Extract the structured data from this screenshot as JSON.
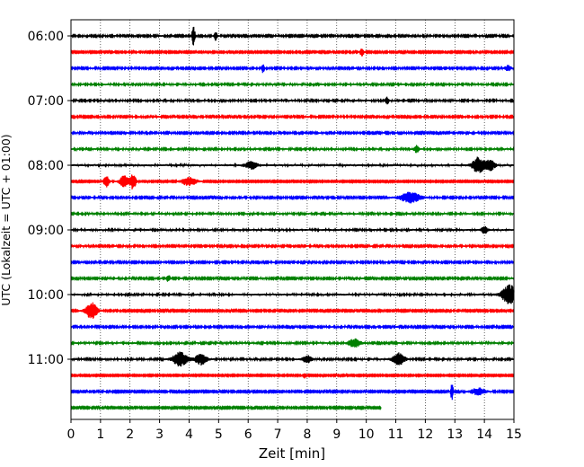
{
  "chart_data": {
    "type": "line",
    "title": "",
    "xlabel": "Zeit  [min]",
    "ylabel": "UTC (Lokalzeit = UTC + 01:00)",
    "xlim": [
      0,
      15
    ],
    "x_ticks": [
      0,
      1,
      2,
      3,
      4,
      5,
      6,
      7,
      8,
      9,
      10,
      11,
      12,
      13,
      14,
      15
    ],
    "x_tick_labels": [
      "0",
      "1",
      "2",
      "3",
      "4",
      "5",
      "6",
      "7",
      "8",
      "9",
      "10",
      "11",
      "12",
      "13",
      "14",
      "15"
    ],
    "y_tick_labels": [
      "06:00",
      "07:00",
      "08:00",
      "09:00",
      "10:00",
      "11:00"
    ],
    "grid": "vertical dotted",
    "legend": "none",
    "colors": [
      "#000000",
      "#ff0000",
      "#0000ff",
      "#008000"
    ],
    "traces": [
      {
        "start": "06:00",
        "color": "#000000",
        "end_min": 15,
        "amplitude": 1.0,
        "events": [
          {
            "t": 4.15,
            "a": 12,
            "w": 0.05
          },
          {
            "t": 4.9,
            "a": 5,
            "w": 0.05
          }
        ]
      },
      {
        "start": "06:15",
        "color": "#ff0000",
        "end_min": 15,
        "amplitude": 0.9,
        "events": [
          {
            "t": 9.85,
            "a": 5,
            "w": 0.06
          }
        ]
      },
      {
        "start": "06:30",
        "color": "#0000ff",
        "end_min": 15,
        "amplitude": 1.0,
        "events": [
          {
            "t": 6.5,
            "a": 5,
            "w": 0.05
          },
          {
            "t": 14.8,
            "a": 3,
            "w": 0.1
          }
        ]
      },
      {
        "start": "06:45",
        "color": "#008000",
        "end_min": 15,
        "amplitude": 1.1,
        "events": []
      },
      {
        "start": "07:00",
        "color": "#000000",
        "end_min": 15,
        "amplitude": 1.1,
        "events": [
          {
            "t": 10.7,
            "a": 4,
            "w": 0.06
          }
        ]
      },
      {
        "start": "07:15",
        "color": "#ff0000",
        "end_min": 15,
        "amplitude": 1.0,
        "events": []
      },
      {
        "start": "07:30",
        "color": "#0000ff",
        "end_min": 15,
        "amplitude": 1.0,
        "events": []
      },
      {
        "start": "07:45",
        "color": "#008000",
        "end_min": 15,
        "amplitude": 1.1,
        "events": [
          {
            "t": 11.7,
            "a": 4,
            "w": 0.08
          }
        ]
      },
      {
        "start": "08:00",
        "color": "#000000",
        "end_min": 15,
        "amplitude": 1.3,
        "events": [
          {
            "t": 6.1,
            "a": 4,
            "w": 0.2
          },
          {
            "t": 13.8,
            "a": 9,
            "w": 0.2
          },
          {
            "t": 14.2,
            "a": 6,
            "w": 0.15
          }
        ]
      },
      {
        "start": "08:15",
        "color": "#ff0000",
        "end_min": 15,
        "amplitude": 0.8,
        "events": [
          {
            "t": 1.2,
            "a": 6,
            "w": 0.1
          },
          {
            "t": 1.8,
            "a": 7,
            "w": 0.15
          },
          {
            "t": 2.1,
            "a": 9,
            "w": 0.1
          },
          {
            "t": 4.0,
            "a": 5,
            "w": 0.25
          }
        ]
      },
      {
        "start": "08:30",
        "color": "#0000ff",
        "end_min": 15,
        "amplitude": 1.0,
        "events": [
          {
            "t": 11.5,
            "a": 6,
            "w": 0.35
          }
        ]
      },
      {
        "start": "08:45",
        "color": "#008000",
        "end_min": 15,
        "amplitude": 1.1,
        "events": []
      },
      {
        "start": "09:00",
        "color": "#000000",
        "end_min": 15,
        "amplitude": 1.2,
        "events": [
          {
            "t": 14.0,
            "a": 4,
            "w": 0.1
          }
        ]
      },
      {
        "start": "09:15",
        "color": "#ff0000",
        "end_min": 15,
        "amplitude": 1.0,
        "events": []
      },
      {
        "start": "09:30",
        "color": "#0000ff",
        "end_min": 15,
        "amplitude": 1.0,
        "events": []
      },
      {
        "start": "09:45",
        "color": "#008000",
        "end_min": 15,
        "amplitude": 1.0,
        "events": [
          {
            "t": 3.3,
            "a": 4,
            "w": 0.06
          }
        ]
      },
      {
        "start": "10:00",
        "color": "#000000",
        "end_min": 15,
        "amplitude": 1.2,
        "events": [
          {
            "t": 14.85,
            "a": 11,
            "w": 0.25
          }
        ]
      },
      {
        "start": "10:15",
        "color": "#ff0000",
        "end_min": 15,
        "amplitude": 0.9,
        "events": [
          {
            "t": 0.7,
            "a": 9,
            "w": 0.2
          }
        ]
      },
      {
        "start": "10:30",
        "color": "#0000ff",
        "end_min": 15,
        "amplitude": 1.0,
        "events": []
      },
      {
        "start": "10:45",
        "color": "#008000",
        "end_min": 15,
        "amplitude": 1.1,
        "events": [
          {
            "t": 9.6,
            "a": 5,
            "w": 0.2
          }
        ]
      },
      {
        "start": "11:00",
        "color": "#000000",
        "end_min": 15,
        "amplitude": 1.1,
        "events": [
          {
            "t": 3.7,
            "a": 8,
            "w": 0.25
          },
          {
            "t": 4.4,
            "a": 6,
            "w": 0.2
          },
          {
            "t": 8.0,
            "a": 4,
            "w": 0.15
          },
          {
            "t": 11.1,
            "a": 7,
            "w": 0.2
          }
        ]
      },
      {
        "start": "11:15",
        "color": "#ff0000",
        "end_min": 15,
        "amplitude": 0.8,
        "events": [
          {
            "t": 7.9,
            "a": 3,
            "w": 0.06
          }
        ]
      },
      {
        "start": "11:30",
        "color": "#0000ff",
        "end_min": 15,
        "amplitude": 0.9,
        "events": [
          {
            "t": 12.9,
            "a": 11,
            "w": 0.04
          },
          {
            "t": 13.8,
            "a": 4,
            "w": 0.25
          }
        ]
      },
      {
        "start": "11:45",
        "color": "#008000",
        "end_min": 10.5,
        "amplitude": 0.9,
        "events": []
      }
    ]
  }
}
